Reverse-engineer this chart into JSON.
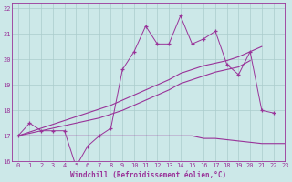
{
  "xlabel": "Windchill (Refroidissement éolien,°C)",
  "xlim": [
    -0.5,
    23
  ],
  "ylim": [
    16,
    22.2
  ],
  "yticks": [
    16,
    17,
    18,
    19,
    20,
    21,
    22
  ],
  "xticks": [
    0,
    1,
    2,
    3,
    4,
    5,
    6,
    7,
    8,
    9,
    10,
    11,
    12,
    13,
    14,
    15,
    16,
    17,
    18,
    19,
    20,
    21,
    22,
    23
  ],
  "background_color": "#cce8e8",
  "grid_color": "#aacccc",
  "line_color": "#993399",
  "zigzag_x": [
    0,
    1,
    2,
    3,
    4,
    5,
    6,
    7,
    8,
    9,
    10,
    11,
    12,
    13,
    14,
    15,
    16,
    17,
    18,
    19,
    20,
    21,
    22
  ],
  "zigzag_y": [
    17.0,
    17.5,
    17.2,
    17.2,
    17.2,
    15.8,
    16.6,
    17.0,
    17.3,
    19.6,
    20.3,
    21.3,
    20.6,
    20.6,
    21.7,
    20.6,
    20.8,
    21.1,
    19.8,
    19.4,
    20.3,
    18.0,
    17.9
  ],
  "upper_x": [
    0,
    1,
    2,
    3,
    4,
    5,
    6,
    7,
    8,
    9,
    10,
    11,
    12,
    13,
    14,
    15,
    16,
    17,
    18,
    19,
    20,
    21
  ],
  "upper_y": [
    17.0,
    17.15,
    17.3,
    17.45,
    17.6,
    17.75,
    17.9,
    18.05,
    18.2,
    18.4,
    18.6,
    18.8,
    19.0,
    19.2,
    19.45,
    19.6,
    19.75,
    19.85,
    19.95,
    20.1,
    20.3,
    20.5
  ],
  "middle_x": [
    0,
    1,
    2,
    3,
    4,
    5,
    6,
    7,
    8,
    9,
    10,
    11,
    12,
    13,
    14,
    15,
    16,
    17,
    18,
    19,
    20
  ],
  "middle_y": [
    17.0,
    17.1,
    17.2,
    17.3,
    17.4,
    17.5,
    17.6,
    17.7,
    17.85,
    18.0,
    18.2,
    18.4,
    18.6,
    18.8,
    19.05,
    19.2,
    19.35,
    19.5,
    19.6,
    19.7,
    19.95
  ],
  "lower_x": [
    0,
    1,
    2,
    3,
    4,
    5,
    6,
    7,
    8,
    9,
    10,
    11,
    12,
    13,
    14,
    15,
    16,
    17,
    18,
    19,
    20,
    21,
    22,
    23
  ],
  "lower_y": [
    17.0,
    17.0,
    17.0,
    17.0,
    17.0,
    17.0,
    17.0,
    17.0,
    17.0,
    17.0,
    17.0,
    17.0,
    17.0,
    17.0,
    17.0,
    17.0,
    16.9,
    16.9,
    16.85,
    16.8,
    16.75,
    16.7,
    16.7,
    16.7
  ]
}
